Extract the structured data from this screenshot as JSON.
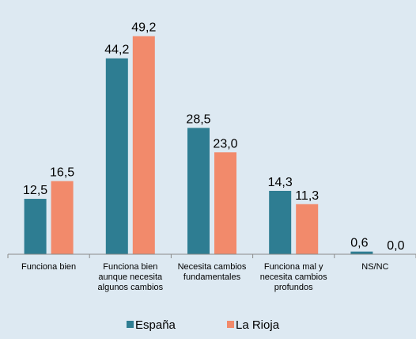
{
  "chart_data": {
    "type": "bar",
    "title": "",
    "xlabel": "",
    "ylabel": "",
    "ylim": [
      0,
      52
    ],
    "grid": false,
    "legend_position": "bottom-center",
    "categories": [
      [
        "Funciona bien"
      ],
      [
        "Funciona bien",
        "aunque necesita",
        "algunos cambios"
      ],
      [
        "Necesita cambios",
        "fundamentales"
      ],
      [
        "Funciona mal y",
        "necesita cambios",
        "profundos"
      ],
      [
        "NS/NC"
      ]
    ],
    "series": [
      {
        "name": "España",
        "color": "#2e7d92",
        "values": [
          12.5,
          44.2,
          28.5,
          14.3,
          0.6
        ],
        "labels": [
          "12,5",
          "44,2",
          "28,5",
          "14,3",
          "0,6"
        ]
      },
      {
        "name": "La Rioja",
        "color": "#f28a6b",
        "values": [
          16.5,
          49.2,
          23.0,
          11.3,
          0.0
        ],
        "labels": [
          "16,5",
          "49,2",
          "23,0",
          "11,3",
          "0,0"
        ]
      }
    ]
  }
}
